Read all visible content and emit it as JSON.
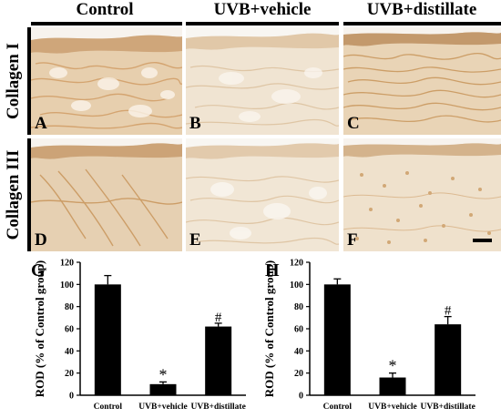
{
  "columns": [
    {
      "label": "Control"
    },
    {
      "label": "UVB+vehicle"
    },
    {
      "label": "UVB+distillate"
    }
  ],
  "rows": [
    {
      "label": "Collagen I"
    },
    {
      "label": "Collagen III"
    }
  ],
  "panels": [
    "A",
    "B",
    "C",
    "D",
    "E",
    "F"
  ],
  "colors": {
    "tissue_light": "#f4ede2",
    "stain": "#c8955a",
    "epidermis": "#b98a5a"
  },
  "chart_data": [
    {
      "type": "bar",
      "letter": "G",
      "categories": [
        "Control",
        "UVB+vehicle",
        "UVB+distillate"
      ],
      "values": [
        100,
        10,
        62
      ],
      "errors": [
        8,
        2,
        3
      ],
      "annotations": [
        "",
        "*",
        "#"
      ],
      "ylabel": "ROD (% of Control group)",
      "ylim": [
        0,
        120
      ],
      "yticks": [
        0,
        20,
        40,
        60,
        80,
        100,
        120
      ]
    },
    {
      "type": "bar",
      "letter": "H",
      "categories": [
        "Control",
        "UVB+vehicle",
        "UVB+distillate"
      ],
      "values": [
        100,
        16,
        64
      ],
      "errors": [
        5,
        4,
        7
      ],
      "annotations": [
        "",
        "*",
        "#"
      ],
      "ylabel": "ROD (% of Control group)",
      "ylim": [
        0,
        120
      ],
      "yticks": [
        0,
        20,
        40,
        60,
        80,
        100,
        120
      ]
    }
  ]
}
